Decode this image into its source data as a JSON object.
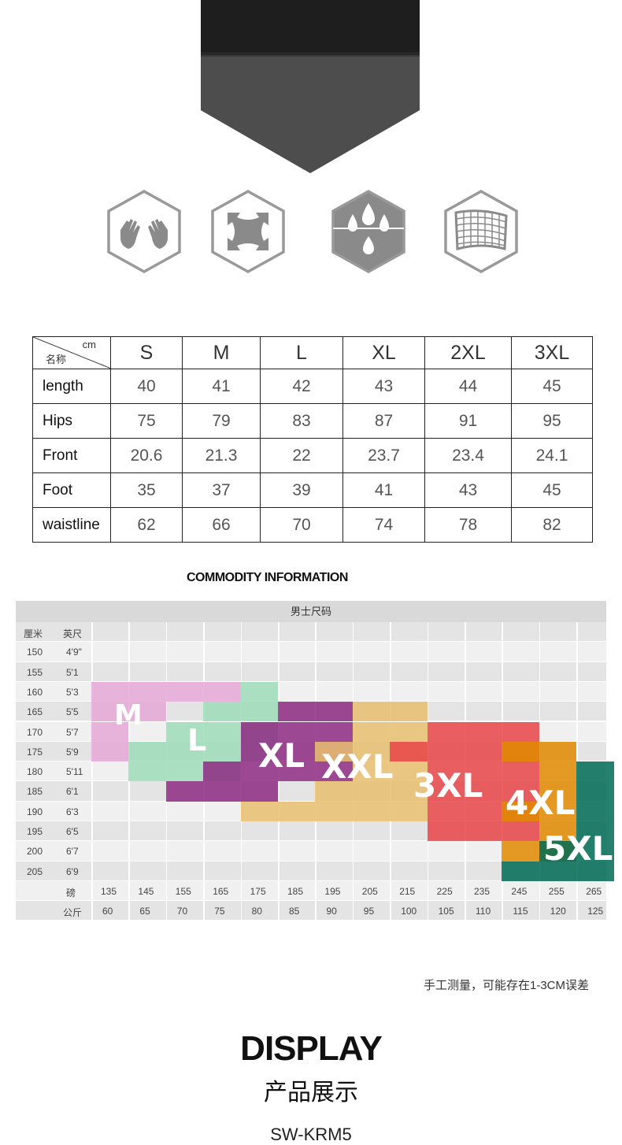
{
  "features": [
    {
      "icon": "hands-icon"
    },
    {
      "icon": "stretch-icon"
    },
    {
      "icon": "water-drops-icon"
    },
    {
      "icon": "fabric-mesh-icon"
    }
  ],
  "size_table": {
    "header_unit": "cm",
    "header_name": "名称",
    "sizes": [
      "S",
      "M",
      "L",
      "XL",
      "2XL",
      "3XL"
    ],
    "rows": [
      {
        "label": "length",
        "values": [
          "40",
          "41",
          "42",
          "43",
          "44",
          "45"
        ]
      },
      {
        "label": "Hips",
        "values": [
          "75",
          "79",
          "83",
          "87",
          "91",
          "95"
        ]
      },
      {
        "label": "Front",
        "values": [
          "20.6",
          "21.3",
          "22",
          "23.7",
          "23.4",
          "24.1"
        ]
      },
      {
        "label": "Foot",
        "values": [
          "35",
          "37",
          "39",
          "41",
          "43",
          "45"
        ]
      },
      {
        "label": "waistline",
        "values": [
          "62",
          "66",
          "70",
          "74",
          "78",
          "82"
        ]
      }
    ]
  },
  "commodity_title": "COMMODITY INFORMATION",
  "mens_chart": {
    "title": "男士尺码",
    "col_cm": "厘米",
    "col_ft": "英尺",
    "heights_cm": [
      "150",
      "155",
      "160",
      "165",
      "170",
      "175",
      "180",
      "185",
      "190",
      "195",
      "200",
      "205"
    ],
    "heights_ft": [
      "4'9\"",
      "5'1",
      "5'3",
      "5'5",
      "5'7",
      "5'9",
      "5'11",
      "6'1",
      "6'3",
      "6'5",
      "6'7",
      "6'9"
    ],
    "lbs_label": "磅",
    "kg_label": "公斤",
    "weights_lbs": [
      "135",
      "145",
      "155",
      "165",
      "175",
      "185",
      "195",
      "205",
      "215",
      "225",
      "235",
      "245",
      "255",
      "265"
    ],
    "weights_kg": [
      "60",
      "65",
      "70",
      "75",
      "80",
      "85",
      "90",
      "95",
      "100",
      "105",
      "110",
      "115",
      "120",
      "125"
    ],
    "sizes": [
      {
        "label": "M",
        "color": "#e6a8d6"
      },
      {
        "label": "L",
        "color": "#9fdcb8"
      },
      {
        "label": "XL",
        "color": "#8e2a82"
      },
      {
        "label": "XXL",
        "color": "#e7c070"
      },
      {
        "label": "3XL",
        "color": "#e84448"
      },
      {
        "label": "4XL",
        "color": "#e08a00"
      },
      {
        "label": "5XL",
        "color": "#006a55"
      }
    ]
  },
  "note": "手工测量，可能存在1-3CM误差",
  "display_title": "DISPLAY",
  "display_subtitle": "产品展示",
  "model_code": "SW-KRM5"
}
